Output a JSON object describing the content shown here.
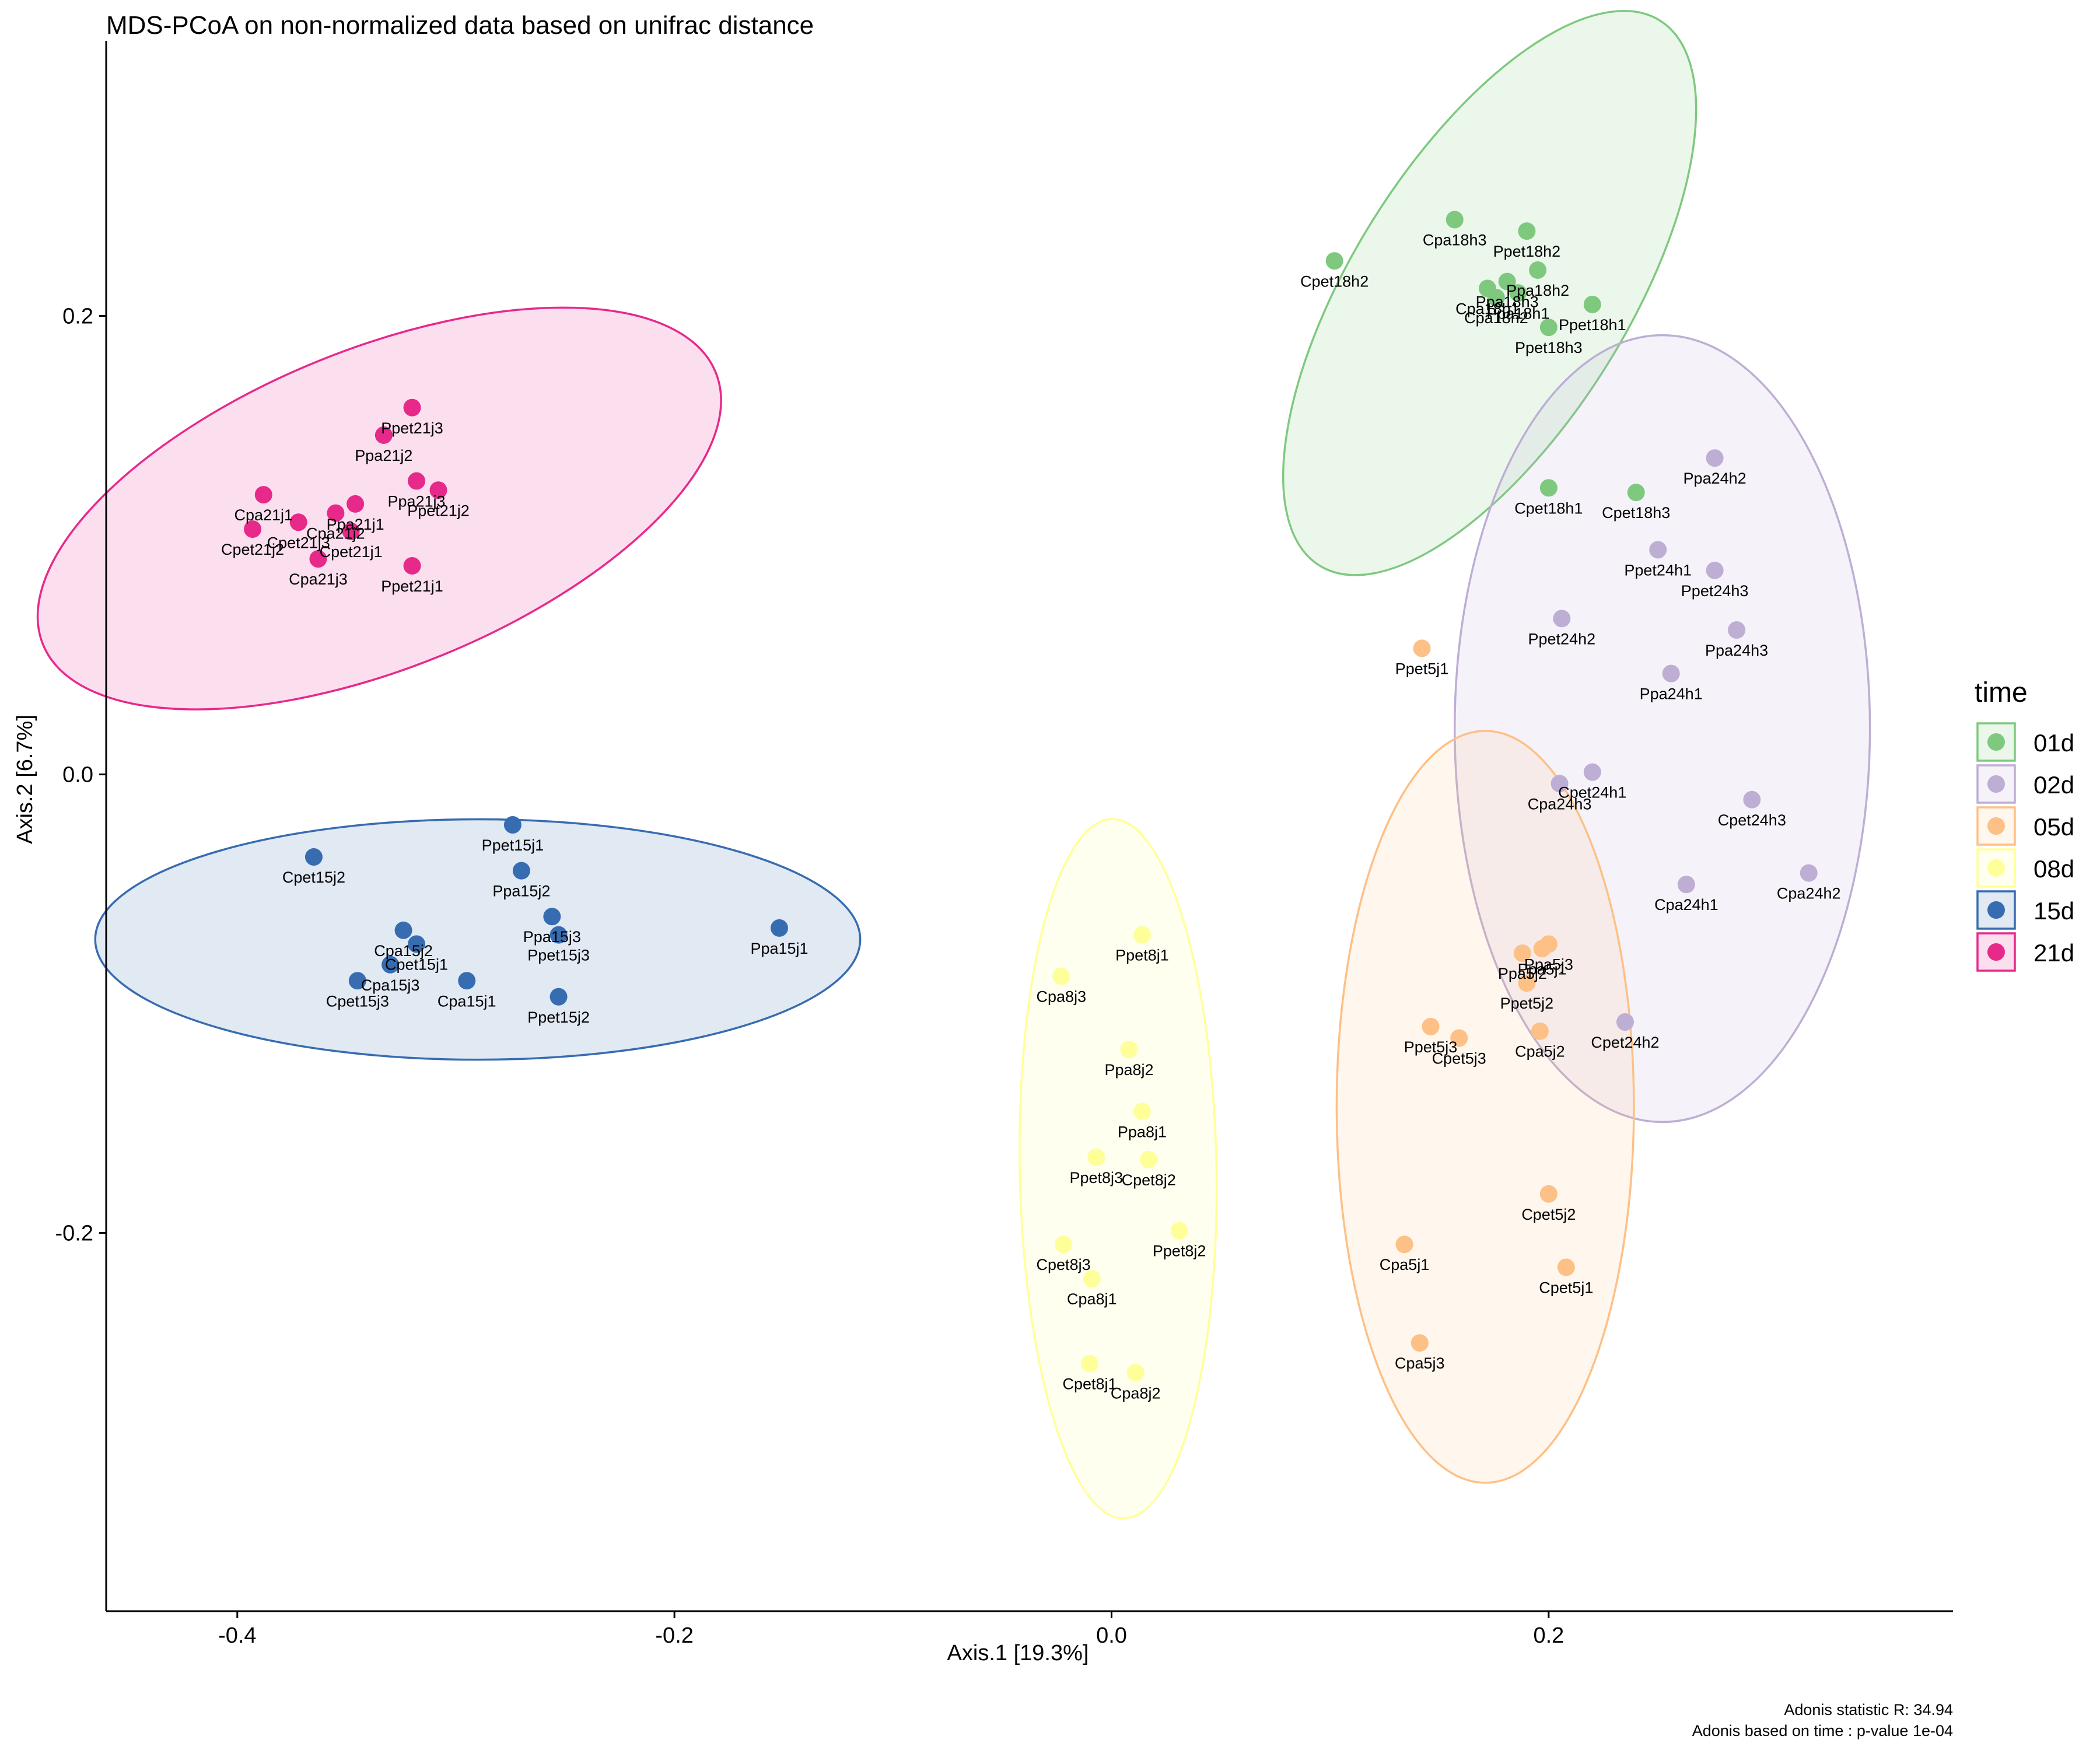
{
  "chart_data": {
    "type": "scatter",
    "title": "MDS-PCoA on non-normalized data based on unifrac distance",
    "xlabel": "Axis.1   [19.3%]",
    "ylabel": "Axis.2   [6.7%]",
    "xlim": [
      -0.46,
      0.385
    ],
    "ylim": [
      -0.365,
      0.32
    ],
    "xticks": [
      -0.4,
      -0.2,
      0.0,
      0.2
    ],
    "xtick_labels": [
      "-0.4",
      "-0.2",
      "0.0",
      "0.2"
    ],
    "yticks": [
      -0.2,
      0.0,
      0.2
    ],
    "ytick_labels": [
      "-0.2",
      "0.0",
      "0.2"
    ],
    "grid": false,
    "legend": {
      "title": "time",
      "placement": "right",
      "entries": [
        "01d",
        "02d",
        "05d",
        "08d",
        "15d",
        "21d"
      ]
    },
    "captions": [
      "Adonis statistic R: 34.94",
      "Adonis based on  time : p-value 1e-04"
    ],
    "series": [
      {
        "name": "01d",
        "color": "#7fc97f",
        "ellipse": {
          "cx": 0.173,
          "cy": 0.21,
          "rx": 0.147,
          "ry": 0.063,
          "angle": -58
        },
        "points": [
          {
            "label": "Cpet18h2",
            "x": 0.102,
            "y": 0.224
          },
          {
            "label": "Cpa18h3",
            "x": 0.157,
            "y": 0.242
          },
          {
            "label": "Ppet18h2",
            "x": 0.19,
            "y": 0.237
          },
          {
            "label": "Cpa18h2",
            "x": 0.176,
            "y": 0.208
          },
          {
            "label": "Ppa18h3",
            "x": 0.181,
            "y": 0.215
          },
          {
            "label": "Ppa18h1",
            "x": 0.186,
            "y": 0.21
          },
          {
            "label": "Cpa18h1",
            "x": 0.172,
            "y": 0.212
          },
          {
            "label": "Ppa18h2",
            "x": 0.195,
            "y": 0.22
          },
          {
            "label": "Ppet18h1",
            "x": 0.22,
            "y": 0.205
          },
          {
            "label": "Ppet18h3",
            "x": 0.2,
            "y": 0.195
          },
          {
            "label": "Cpet18h1",
            "x": 0.2,
            "y": 0.125
          },
          {
            "label": "Cpet18h3",
            "x": 0.24,
            "y": 0.123
          }
        ]
      },
      {
        "name": "02d",
        "color": "#beaed4",
        "ellipse": {
          "cx": 0.252,
          "cy": 0.02,
          "rx": 0.18,
          "ry": 0.095,
          "angle": -90
        },
        "points": [
          {
            "label": "Ppa24h2",
            "x": 0.276,
            "y": 0.138
          },
          {
            "label": "Ppet24h1",
            "x": 0.25,
            "y": 0.098
          },
          {
            "label": "Ppet24h3",
            "x": 0.276,
            "y": 0.089
          },
          {
            "label": "Ppet24h2",
            "x": 0.206,
            "y": 0.068
          },
          {
            "label": "Ppa24h3",
            "x": 0.286,
            "y": 0.063
          },
          {
            "label": "Ppa24h1",
            "x": 0.256,
            "y": 0.044
          },
          {
            "label": "Cpet24h1",
            "x": 0.22,
            "y": 0.001
          },
          {
            "label": "Cpa24h3",
            "x": 0.205,
            "y": -0.004
          },
          {
            "label": "Cpet24h3",
            "x": 0.293,
            "y": -0.011
          },
          {
            "label": "Cpa24h1",
            "x": 0.263,
            "y": -0.048
          },
          {
            "label": "Cpa24h2",
            "x": 0.319,
            "y": -0.043
          },
          {
            "label": "Cpet24h2",
            "x": 0.235,
            "y": -0.108
          }
        ]
      },
      {
        "name": "05d",
        "color": "#fdc086",
        "ellipse": {
          "cx": 0.171,
          "cy": -0.145,
          "rx": 0.172,
          "ry": 0.068,
          "angle": -90
        },
        "points": [
          {
            "label": "Ppet5j1",
            "x": 0.142,
            "y": 0.055
          },
          {
            "label": "Ppa5j2",
            "x": 0.188,
            "y": -0.078
          },
          {
            "label": "Ppa5j1",
            "x": 0.197,
            "y": -0.076
          },
          {
            "label": "Ppet5j2",
            "x": 0.19,
            "y": -0.091
          },
          {
            "label": "Ppa5j3",
            "x": 0.2,
            "y": -0.074
          },
          {
            "label": "Ppet5j3",
            "x": 0.146,
            "y": -0.11
          },
          {
            "label": "Cpet5j3",
            "x": 0.159,
            "y": -0.115
          },
          {
            "label": "Cpa5j2",
            "x": 0.196,
            "y": -0.112
          },
          {
            "label": "Cpet5j2",
            "x": 0.2,
            "y": -0.183
          },
          {
            "label": "Cpa5j1",
            "x": 0.134,
            "y": -0.205
          },
          {
            "label": "Cpet5j1",
            "x": 0.208,
            "y": -0.215
          },
          {
            "label": "Cpa5j3",
            "x": 0.141,
            "y": -0.248
          }
        ]
      },
      {
        "name": "08d",
        "color": "#ffff99",
        "ellipse": {
          "cx": 0.003,
          "cy": -0.172,
          "rx": 0.16,
          "ry": 0.045,
          "angle": -91
        },
        "points": [
          {
            "label": "Ppet8j1",
            "x": 0.014,
            "y": -0.07
          },
          {
            "label": "Cpa8j3",
            "x": -0.023,
            "y": -0.088
          },
          {
            "label": "Ppa8j2",
            "x": 0.008,
            "y": -0.12
          },
          {
            "label": "Ppa8j1",
            "x": 0.014,
            "y": -0.147
          },
          {
            "label": "Ppet8j3",
            "x": -0.007,
            "y": -0.167
          },
          {
            "label": "Cpet8j2",
            "x": 0.017,
            "y": -0.168
          },
          {
            "label": "Ppet8j2",
            "x": 0.031,
            "y": -0.199
          },
          {
            "label": "Cpet8j3",
            "x": -0.022,
            "y": -0.205
          },
          {
            "label": "Cpa8j1",
            "x": -0.009,
            "y": -0.22
          },
          {
            "label": "Cpet8j1",
            "x": -0.01,
            "y": -0.257
          },
          {
            "label": "Cpa8j2",
            "x": 0.011,
            "y": -0.261
          }
        ]
      },
      {
        "name": "15d",
        "color": "#386cb0",
        "ellipse": {
          "cx": -0.29,
          "cy": -0.072,
          "rx": 0.175,
          "ry": 0.055,
          "angle": 0
        },
        "points": [
          {
            "label": "Ppet15j1",
            "x": -0.274,
            "y": -0.022
          },
          {
            "label": "Cpet15j2",
            "x": -0.365,
            "y": -0.036
          },
          {
            "label": "Ppa15j2",
            "x": -0.27,
            "y": -0.042
          },
          {
            "label": "Ppa15j3",
            "x": -0.256,
            "y": -0.062
          },
          {
            "label": "Ppet15j3",
            "x": -0.253,
            "y": -0.07
          },
          {
            "label": "Cpa15j2",
            "x": -0.324,
            "y": -0.068
          },
          {
            "label": "Cpet15j1",
            "x": -0.318,
            "y": -0.074
          },
          {
            "label": "Cpet15j3",
            "x": -0.345,
            "y": -0.09
          },
          {
            "label": "Cpa15j1",
            "x": -0.295,
            "y": -0.09
          },
          {
            "label": "Cpa15j3",
            "x": -0.33,
            "y": -0.083
          },
          {
            "label": "Ppet15j2",
            "x": -0.253,
            "y": -0.097
          },
          {
            "label": "Ppa15j1",
            "x": -0.152,
            "y": -0.067
          }
        ]
      },
      {
        "name": "21d",
        "color": "#e7298a",
        "ellipse": {
          "cx": -0.335,
          "cy": 0.116,
          "rx": 0.166,
          "ry": 0.073,
          "angle": -22
        },
        "points": [
          {
            "label": "Ppet21j3",
            "x": -0.32,
            "y": 0.16
          },
          {
            "label": "Ppa21j2",
            "x": -0.333,
            "y": 0.148
          },
          {
            "label": "Cpa21j1",
            "x": -0.388,
            "y": 0.122
          },
          {
            "label": "Cpet21j2",
            "x": -0.393,
            "y": 0.107
          },
          {
            "label": "Cpet21j3",
            "x": -0.372,
            "y": 0.11
          },
          {
            "label": "Cpet21j1",
            "x": -0.348,
            "y": 0.106
          },
          {
            "label": "Cpa21j3",
            "x": -0.363,
            "y": 0.094
          },
          {
            "label": "Ppa21j1",
            "x": -0.346,
            "y": 0.118
          },
          {
            "label": "Ppa21j3",
            "x": -0.318,
            "y": 0.128
          },
          {
            "label": "Ppet21j2",
            "x": -0.308,
            "y": 0.124
          },
          {
            "label": "Cpa21j2",
            "x": -0.355,
            "y": 0.114
          },
          {
            "label": "Ppet21j1",
            "x": -0.32,
            "y": 0.091
          }
        ]
      }
    ]
  }
}
